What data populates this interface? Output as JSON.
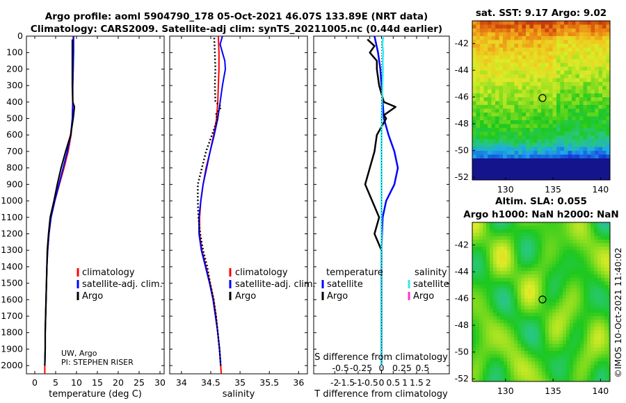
{
  "header": {
    "title_line1": "Argo profile: aoml 5904790_178 05-Oct-2021 46.07S 133.89E (NRT data)",
    "title_line2": "Climatology: CARS2009. Satellite-adj clim: synTS_20211005.nc (0.44d earlier)"
  },
  "credit": {
    "line1": "UW, Argo",
    "line2": "PI: STEPHEN RISER"
  },
  "watermark": "©IMOS 10-Oct-2021 11:40:02",
  "colors": {
    "climatology": "#ff0000",
    "satellite": "#0000ff",
    "argo": "#000000",
    "sat_salinity": "#33e6f0",
    "argo_salinity": "#ff33cc"
  },
  "chart_data": [
    {
      "id": "temperature",
      "type": "line",
      "xlabel": "temperature (deg C)",
      "ylabel": "",
      "xlim": [
        -2,
        31
      ],
      "ylim": [
        0,
        2050
      ],
      "xticks": [
        "0",
        "5",
        "10",
        "15",
        "20",
        "25",
        "30"
      ],
      "yticks": [
        "0",
        "100",
        "200",
        "300",
        "400",
        "500",
        "600",
        "700",
        "800",
        "900",
        "1000",
        "1100",
        "1200",
        "1300",
        "1400",
        "1500",
        "1600",
        "1700",
        "1800",
        "1900",
        "2000"
      ],
      "legend": [
        "climatology",
        "satellite-adj. clim.",
        "Argo"
      ],
      "series": [
        {
          "name": "climatology",
          "depth": [
            0,
            100,
            200,
            300,
            400,
            500,
            600,
            700,
            800,
            900,
            1000,
            1100,
            1200,
            1300,
            1400,
            1500,
            1600,
            1700,
            1800,
            1900,
            2000,
            2050
          ],
          "values": [
            9.2,
            9.2,
            9.2,
            9.1,
            9.1,
            9.0,
            8.7,
            8.0,
            7.0,
            5.9,
            4.8,
            3.9,
            3.4,
            3.1,
            2.9,
            2.8,
            2.7,
            2.6,
            2.5,
            2.5,
            2.4,
            2.4
          ]
        },
        {
          "name": "satellite-adj. clim.",
          "depth": [
            0,
            100,
            200,
            300,
            400,
            500,
            600,
            700,
            800,
            900,
            1000,
            1100,
            1200,
            1300,
            1400,
            1500,
            1600,
            1700,
            1800,
            1900,
            2000
          ],
          "values": [
            9.3,
            9.3,
            9.2,
            9.1,
            9.1,
            9.0,
            8.6,
            7.8,
            6.8,
            5.8,
            4.8,
            3.9,
            3.4,
            3.1,
            2.9,
            2.8,
            2.7,
            2.6,
            2.5,
            2.5,
            2.4
          ]
        },
        {
          "name": "Argo",
          "depth": [
            20,
            100,
            200,
            300,
            400,
            430,
            500,
            600,
            700,
            800,
            900,
            950,
            1000,
            1100,
            1200,
            1300,
            1400,
            1500,
            1600,
            1700,
            1800,
            1900,
            2000
          ],
          "values": [
            9.0,
            9.0,
            9.0,
            9.0,
            9.1,
            9.5,
            9.2,
            8.6,
            7.4,
            6.3,
            5.4,
            5.0,
            4.6,
            3.7,
            3.3,
            3.0,
            2.9,
            2.8,
            2.7,
            2.6,
            2.5,
            2.5,
            2.4
          ]
        }
      ]
    },
    {
      "id": "salinity",
      "type": "line",
      "xlabel": "salinity",
      "xlim": [
        33.8,
        36.15
      ],
      "ylim": [
        0,
        2050
      ],
      "xticks": [
        "34",
        "34.5",
        "35",
        "35.5",
        "36"
      ],
      "legend": [
        "climatology",
        "satellite-adj. clim.",
        "Argo"
      ],
      "series": [
        {
          "name": "climatology",
          "depth": [
            0,
            100,
            200,
            300,
            400,
            500,
            600,
            700,
            800,
            900,
            1000,
            1100,
            1200,
            1300,
            1400,
            1500,
            1600,
            1700,
            1800,
            1900,
            2000,
            2050
          ],
          "values": [
            34.63,
            34.64,
            34.64,
            34.63,
            34.62,
            34.6,
            34.55,
            34.49,
            34.42,
            34.37,
            34.33,
            34.31,
            34.31,
            34.35,
            34.42,
            34.49,
            34.55,
            34.59,
            34.62,
            34.65,
            34.67,
            34.68
          ]
        },
        {
          "name": "satellite-adj. clim.",
          "depth": [
            0,
            50,
            100,
            150,
            200,
            300,
            400,
            500,
            600,
            700,
            800,
            900,
            1000,
            1100,
            1200,
            1300,
            1400,
            1500,
            1600,
            1700,
            1800,
            1900,
            2000
          ],
          "values": [
            34.7,
            34.66,
            34.7,
            34.74,
            34.75,
            34.7,
            34.66,
            34.62,
            34.56,
            34.49,
            34.43,
            34.37,
            34.33,
            34.3,
            34.3,
            34.34,
            34.41,
            34.48,
            34.54,
            34.58,
            34.62,
            34.65,
            34.67
          ]
        },
        {
          "name": "Argo",
          "depth": [
            10,
            100,
            200,
            300,
            400,
            430,
            480,
            500,
            600,
            700,
            800,
            900,
            1000,
            1100,
            1200,
            1300,
            1400,
            1500,
            1600,
            1700,
            1800,
            1900,
            2000
          ],
          "values": [
            34.56,
            34.57,
            34.58,
            34.57,
            34.58,
            34.68,
            34.58,
            34.62,
            34.52,
            34.42,
            34.35,
            34.28,
            34.28,
            34.29,
            34.32,
            34.37,
            34.44,
            34.49,
            34.55,
            34.59,
            34.62,
            34.65,
            34.67
          ]
        }
      ]
    },
    {
      "id": "difference",
      "type": "line",
      "xlabel": "T difference from climatology",
      "xlabel_top": "S difference from climatology",
      "xlim": [
        -2.9,
        2.9
      ],
      "ylim": [
        0,
        2050
      ],
      "xticks": [
        "-2",
        "-1.5",
        "-1",
        "-0.5",
        "0",
        "0.5",
        "1",
        "1.5",
        "2"
      ],
      "xticks_top": [
        "-0.5",
        "-0.25",
        "0",
        "0.25",
        "0.5"
      ],
      "legend_titles": [
        "temperature",
        "salinity"
      ],
      "legend_temperature": [
        "satellite",
        "Argo"
      ],
      "legend_salinity": [
        "satellite",
        "Argo"
      ],
      "series": [
        {
          "name": "T satellite",
          "depth": [
            0,
            100,
            200,
            300,
            400,
            500,
            600,
            700,
            800,
            900,
            1000,
            1100,
            1200,
            1300,
            1400,
            1500,
            1600,
            1700,
            1800,
            1900,
            2000
          ],
          "values": [
            -0.3,
            -0.15,
            -0.05,
            0.0,
            0.05,
            0.1,
            0.3,
            0.55,
            0.7,
            0.55,
            0.2,
            0.05,
            0.02,
            0.0,
            0.0,
            0.0,
            0.0,
            0.0,
            0.0,
            0.0,
            0.0
          ]
        },
        {
          "name": "T Argo",
          "depth": [
            20,
            60,
            100,
            150,
            200,
            300,
            400,
            430,
            480,
            500,
            600,
            700,
            800,
            900,
            1000,
            1100,
            1200,
            1300,
            1400,
            1500,
            1600,
            1700,
            1800,
            1900,
            2000
          ],
          "values": [
            -0.6,
            -0.3,
            -0.5,
            -0.2,
            -0.2,
            -0.1,
            0.1,
            0.6,
            0.1,
            0.2,
            -0.2,
            -0.3,
            -0.5,
            -0.7,
            -0.4,
            -0.1,
            -0.3,
            0.0,
            0.0,
            0.0,
            0.0,
            0.0,
            0.0,
            0.0,
            0.0
          ]
        },
        {
          "name": "S satellite",
          "depth": [
            0,
            50,
            100,
            150,
            200,
            300,
            400,
            500,
            600,
            700,
            800,
            900,
            1000,
            1100,
            1200,
            1300,
            1400,
            1500,
            1600,
            1700,
            1800,
            1900,
            2000
          ],
          "values": [
            0.07,
            0.04,
            0.07,
            0.05,
            0.06,
            0.04,
            0.02,
            0.01,
            0.0,
            0.0,
            0.0,
            0.0,
            0.0,
            0.0,
            0.0,
            0.0,
            0.0,
            0.0,
            0.0,
            0.0,
            0.0,
            0.0,
            0.0
          ]
        }
      ]
    },
    {
      "id": "sst_map",
      "type": "heatmap",
      "title": "sat. SST: 9.17 Argo: 9.02",
      "xticks": [
        "130",
        "135",
        "140"
      ],
      "yticks": [
        "-42",
        "-44",
        "-46",
        "-48",
        "-50",
        "-52"
      ],
      "xlim": [
        126.5,
        141
      ],
      "ylim": [
        -52.2,
        -40.3
      ],
      "marker": {
        "lon": 133.89,
        "lat": -46.07
      }
    },
    {
      "id": "sla_map",
      "type": "heatmap",
      "title_line1": "Altim. SLA: 0.055",
      "title_line2": "Argo h1000: NaN h2000: NaN",
      "xticks": [
        "130",
        "135",
        "140"
      ],
      "yticks": [
        "-42",
        "-44",
        "-46",
        "-48",
        "-50",
        "-52"
      ],
      "xlim": [
        126.5,
        141
      ],
      "ylim": [
        -52.2,
        -40.3
      ],
      "marker": {
        "lon": 133.89,
        "lat": -46.07
      }
    }
  ]
}
